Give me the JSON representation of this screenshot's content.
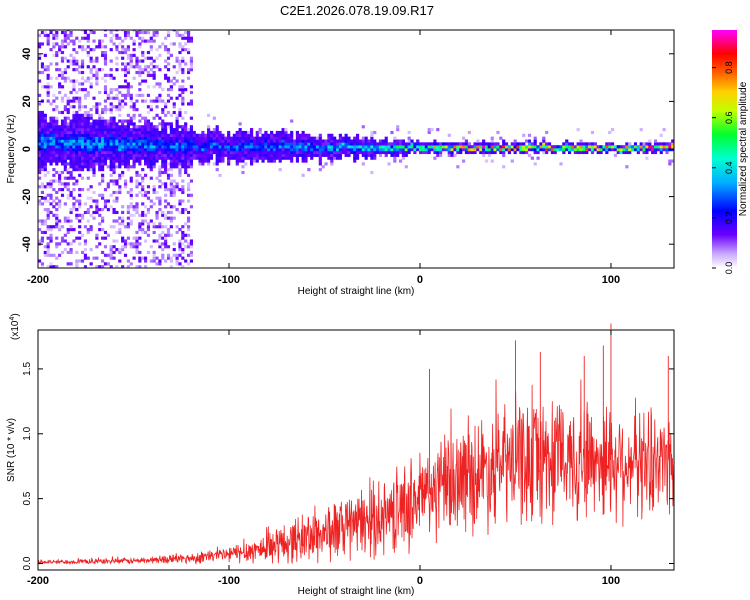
{
  "title": "C2E1.2026.078.19.09.R17",
  "chart_data": [
    {
      "type": "heatmap",
      "title": "C2E1.2026.078.19.09.R17",
      "xlabel": "Height of straight line (km)",
      "ylabel": "Frequency (Hz)",
      "xlim": [
        -200,
        133
      ],
      "ylim": [
        -50,
        50
      ],
      "xticks": [
        -200,
        -100,
        0,
        100
      ],
      "yticks": [
        -40,
        -20,
        0,
        20,
        40
      ],
      "xtick_labels": [
        "-200",
        "-100",
        "0",
        "100"
      ],
      "ytick_labels": [
        "-40",
        "-20",
        "0",
        "20",
        "40"
      ],
      "colorbar": {
        "label": "Normalized spectral amplitude",
        "range": [
          0,
          0.95
        ],
        "ticks": [
          0.0,
          0.2,
          0.4,
          0.6,
          0.8
        ],
        "tick_labels": [
          "0.0",
          "0.2",
          "0.4",
          "0.6",
          "0.8"
        ],
        "colors": [
          "#ffffff",
          "#6a00ff",
          "#0000ff",
          "#00e5ff",
          "#00ff40",
          "#ffff00",
          "#ff8000",
          "#ff0000",
          "#ff00ff"
        ]
      },
      "band": {
        "center_hz": [
          [
            -200,
            3
          ],
          [
            -150,
            2
          ],
          [
            -100,
            1
          ],
          [
            -50,
            1
          ],
          [
            0,
            0.5
          ],
          [
            50,
            0.5
          ],
          [
            100,
            0.5
          ],
          [
            133,
            0.5
          ]
        ],
        "halfwidth_hz": [
          [
            -200,
            10
          ],
          [
            -130,
            8
          ],
          [
            -100,
            6
          ],
          [
            -50,
            5
          ],
          [
            0,
            2.5
          ],
          [
            50,
            2
          ],
          [
            133,
            2
          ]
        ],
        "peak_amplitude": [
          [
            -200,
            0.35
          ],
          [
            -150,
            0.35
          ],
          [
            -100,
            0.3
          ],
          [
            -50,
            0.35
          ],
          [
            0,
            0.6
          ],
          [
            30,
            0.85
          ],
          [
            133,
            0.85
          ]
        ],
        "broadband_noise_range_km": [
          -200,
          -120
        ]
      }
    },
    {
      "type": "line",
      "xlabel": "Height of straight line (km)",
      "ylabel": "SNR (10 * v/v)",
      "y_scale_note": "(x10",
      "y_scale_exponent": "4",
      "xlim": [
        -200,
        133
      ],
      "ylim": [
        -0.05,
        1.8
      ],
      "xticks": [
        -200,
        -100,
        0,
        100
      ],
      "yticks": [
        0.0,
        0.5,
        1.0,
        1.5
      ],
      "xtick_labels": [
        "-200",
        "-100",
        "0",
        "100"
      ],
      "ytick_labels": [
        "0.0",
        "0.5",
        "1.0",
        "1.5"
      ],
      "color": "#ee2222",
      "envelope": {
        "x": [
          -200,
          -150,
          -120,
          -100,
          -80,
          -60,
          -40,
          -20,
          0,
          20,
          40,
          60,
          80,
          100,
          120,
          133
        ],
        "mean": [
          0.01,
          0.02,
          0.04,
          0.07,
          0.12,
          0.2,
          0.27,
          0.35,
          0.5,
          0.65,
          0.75,
          0.8,
          0.82,
          0.8,
          0.78,
          0.8
        ],
        "spread": [
          0.02,
          0.03,
          0.05,
          0.08,
          0.15,
          0.25,
          0.3,
          0.35,
          0.45,
          0.5,
          0.55,
          0.6,
          0.6,
          0.55,
          0.5,
          0.5
        ]
      },
      "peaks": [
        {
          "x": 5,
          "y": 1.5
        },
        {
          "x": 50,
          "y": 1.72
        },
        {
          "x": 63,
          "y": 1.63
        },
        {
          "x": 86,
          "y": 1.6
        },
        {
          "x": 96,
          "y": 1.68
        },
        {
          "x": 100,
          "y": 1.85
        },
        {
          "x": 130,
          "y": 1.6
        }
      ]
    }
  ]
}
